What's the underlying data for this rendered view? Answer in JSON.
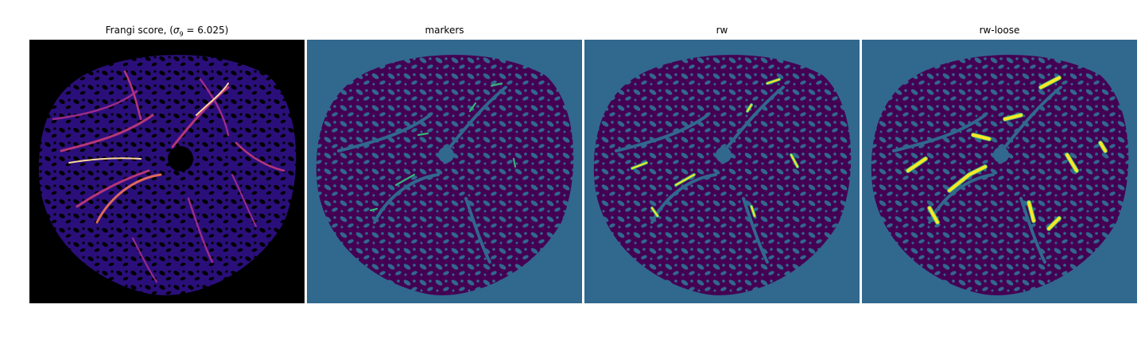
{
  "panels": [
    {
      "title_prefix": "Frangi score, (",
      "title_math": "σ",
      "title_sub": "9",
      "title_suffix": " = 6.025)",
      "colormap": "magma"
    },
    {
      "title": "markers",
      "colormap": "viridis"
    },
    {
      "title": "rw",
      "colormap": "viridis"
    },
    {
      "title": "rw-loose",
      "colormap": "viridis"
    }
  ],
  "colors": {
    "black": "#000000",
    "magma_bg": "#2a0f7a",
    "magma_mid": "#b5367a",
    "magma_hi": "#fcd6a0",
    "viridis_dark": "#440154",
    "viridis_teal": "#31688e",
    "viridis_green": "#35b779",
    "viridis_yellow": "#fde725"
  }
}
